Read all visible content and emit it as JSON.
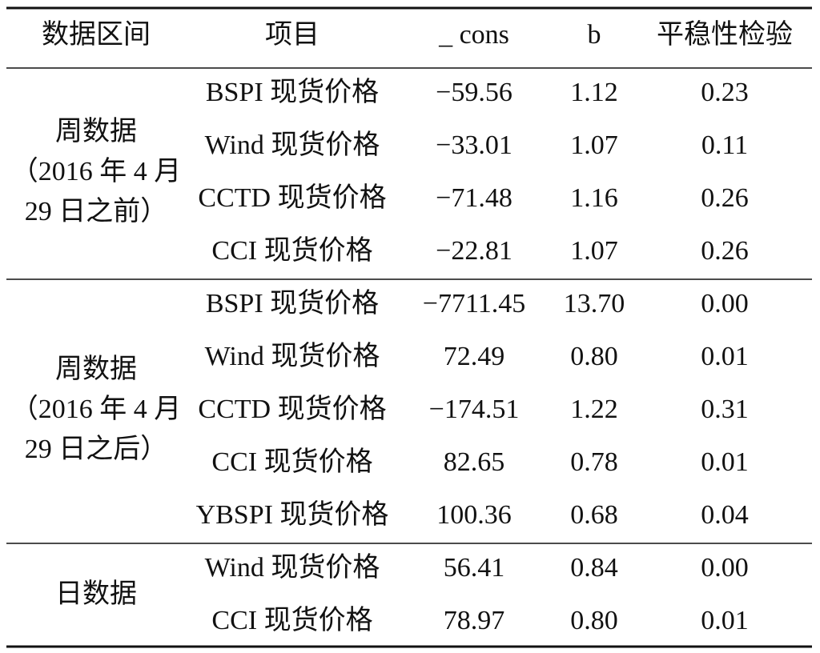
{
  "table": {
    "header": [
      "数据区间",
      "项目",
      "_ cons",
      "b",
      "平稳性检验"
    ],
    "groups": [
      {
        "label": [
          "周数据",
          "（2016 年 4 月",
          "29 日之前）"
        ],
        "rows": [
          [
            "BSPI 现货价格",
            "−59.56",
            "1.12",
            "0.23"
          ],
          [
            "Wind 现货价格",
            "−33.01",
            "1.07",
            "0.11"
          ],
          [
            "CCTD 现货价格",
            "−71.48",
            "1.16",
            "0.26"
          ],
          [
            "CCI 现货价格",
            "−22.81",
            "1.07",
            "0.26"
          ]
        ]
      },
      {
        "label": [
          "周数据",
          "（2016 年 4 月",
          "29 日之后）"
        ],
        "rows": [
          [
            "BSPI 现货价格",
            "−7711.45",
            "13.70",
            "0.00"
          ],
          [
            "Wind 现货价格",
            "72.49",
            "0.80",
            "0.01"
          ],
          [
            "CCTD 现货价格",
            "−174.51",
            "1.22",
            "0.31"
          ],
          [
            "CCI 现货价格",
            "82.65",
            "0.78",
            "0.01"
          ],
          [
            "YBSPI 现货价格",
            "100.36",
            "0.68",
            "0.04"
          ]
        ]
      },
      {
        "label": [
          "日数据"
        ],
        "rows": [
          [
            "Wind 现货价格",
            "56.41",
            "0.84",
            "0.00"
          ],
          [
            "CCI 现货价格",
            "78.97",
            "0.80",
            "0.01"
          ]
        ]
      }
    ]
  }
}
